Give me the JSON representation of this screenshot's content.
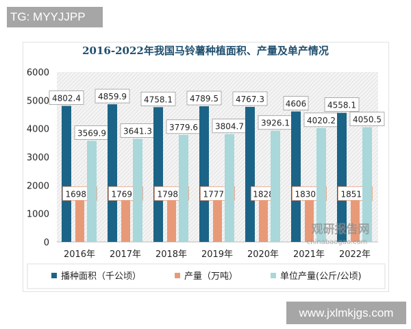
{
  "watermarks": {
    "top_left": "TG: MYYJJPP",
    "bottom_right": "www.jxlmkjgs.com",
    "logo": "观研报告网 chinabaogao.com"
  },
  "chart_data": {
    "type": "bar",
    "title": "2016-2022年我国马铃薯种植面积、产量及单产情况",
    "categories": [
      "2016年",
      "2017年",
      "2018年",
      "2019年",
      "2020年",
      "2021年",
      "2022年"
    ],
    "ylim": [
      0,
      6000
    ],
    "yticks": [
      0,
      1000,
      2000,
      3000,
      4000,
      5000,
      6000
    ],
    "legend_position": "bottom",
    "series": [
      {
        "name": "播种面积（千公顷）",
        "color": "#1b6487",
        "values": [
          4802.4,
          4859.9,
          4758.1,
          4789.5,
          4767.3,
          4606,
          4558.1
        ]
      },
      {
        "name": "产量（万吨）",
        "color": "#e89a78",
        "values": [
          1698.6,
          1769.6,
          1798.4,
          1777.9,
          1828,
          1830.9,
          1851.6
        ]
      },
      {
        "name": "单位产量(公斤/公顷)",
        "color": "#a9d7da",
        "values": [
          3569.9,
          3641.3,
          3779.6,
          3804.7,
          3926.1,
          4020.2,
          4050.5
        ]
      }
    ]
  }
}
